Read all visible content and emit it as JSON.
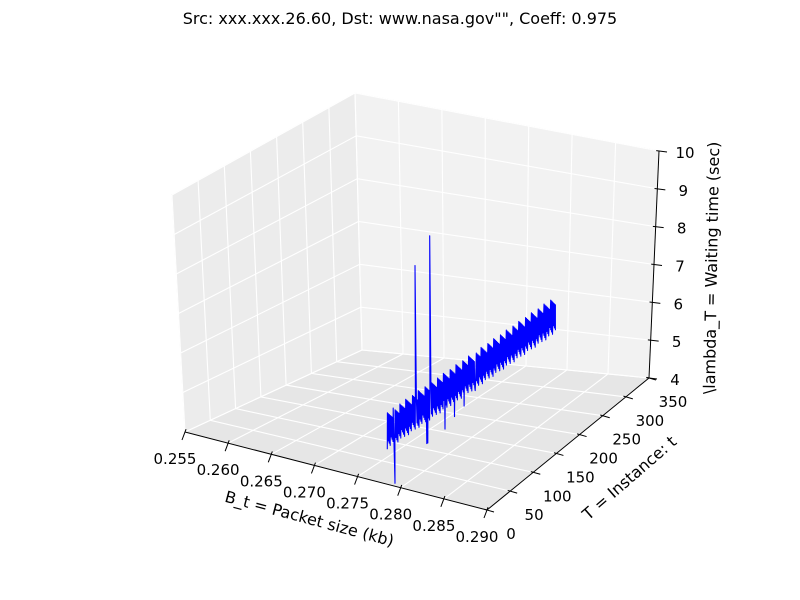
{
  "chart_data": {
    "type": "line",
    "projection": "3d",
    "title": "Src: xxx.xxx.26.60, Dst: www.nasa.gov\"\", Coeff: 0.975",
    "xlabel": "B_t = Packet size (kb)",
    "ylabel": "T = Instance: t",
    "zlabel": "\\lambda_T = Waiting time (sec)",
    "xlim": [
      0.255,
      0.29
    ],
    "ylim": [
      0,
      350
    ],
    "zlim": [
      4,
      10
    ],
    "xticks": [
      "0.255",
      "0.260",
      "0.265",
      "0.270",
      "0.275",
      "0.280",
      "0.285",
      "0.290"
    ],
    "yticks": [
      "0",
      "50",
      "100",
      "150",
      "200",
      "250",
      "300",
      "350"
    ],
    "zticks": [
      "4",
      "5",
      "6",
      "7",
      "8",
      "9",
      "10"
    ],
    "grid": true,
    "series": [
      {
        "color": "#0000ff",
        "x_constant": 0.2785,
        "t_range": [
          0,
          350
        ],
        "z_band": [
          4.9,
          5.85
        ],
        "spikes": [
          {
            "t": 60,
            "z": 9.1
          },
          {
            "t": 90,
            "z": 9.6
          },
          {
            "t": 15,
            "z": 3.9
          },
          {
            "t": 82,
            "z": 4.35
          },
          {
            "t": 84,
            "z": 4.35
          },
          {
            "t": 120,
            "z": 4.4
          },
          {
            "t": 140,
            "z": 4.55
          },
          {
            "t": 160,
            "z": 4.65
          },
          {
            "t": 183,
            "z": 4.85
          }
        ]
      }
    ]
  }
}
